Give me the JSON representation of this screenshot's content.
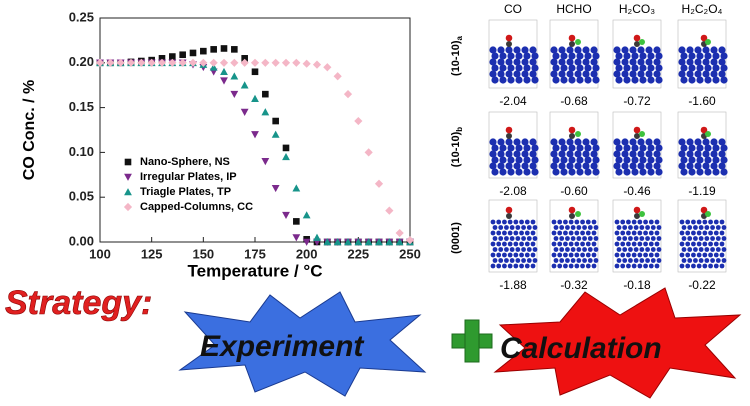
{
  "chart_data": {
    "type": "scatter",
    "xlabel": "Temperature / °C",
    "ylabel": "CO Conc. / %",
    "xlim": [
      100,
      250
    ],
    "xticks": [
      100,
      125,
      150,
      175,
      200,
      225,
      250
    ],
    "ylim": [
      0,
      0.25
    ],
    "yticks": [
      {
        "value": 0,
        "label": "0.00"
      },
      {
        "value": 0.05,
        "label": "0.05"
      },
      {
        "value": 0.1,
        "label": "0.10"
      },
      {
        "value": 0.15,
        "label": "0.15"
      },
      {
        "value": 0.2,
        "label": "0.20"
      },
      {
        "value": 0.25,
        "label": "0.25"
      }
    ],
    "legend": "lower left",
    "series": [
      {
        "name": "Nano-Sphere, NS",
        "color": "#111111",
        "marker": "square",
        "x": [
          100,
          105,
          110,
          115,
          120,
          125,
          130,
          135,
          140,
          145,
          150,
          155,
          160,
          165,
          170,
          175,
          180,
          185,
          190,
          195,
          200,
          205,
          210,
          215,
          220,
          225,
          230,
          235,
          240,
          245,
          250
        ],
        "values": [
          0.2,
          0.2,
          0.2,
          0.201,
          0.202,
          0.203,
          0.205,
          0.207,
          0.209,
          0.211,
          0.213,
          0.215,
          0.216,
          0.215,
          0.205,
          0.19,
          0.165,
          0.135,
          0.105,
          0.023,
          0.003,
          0,
          0,
          0,
          0,
          0,
          0,
          0,
          0,
          0,
          0
        ]
      },
      {
        "name": "Irregular Plates, IP",
        "color": "#7b2a8c",
        "marker": "triangle-down",
        "x": [
          100,
          105,
          110,
          115,
          120,
          125,
          130,
          135,
          140,
          145,
          150,
          155,
          160,
          165,
          170,
          175,
          180,
          185,
          190,
          195,
          200,
          205,
          210,
          215,
          220,
          225,
          230,
          235,
          240,
          245,
          250
        ],
        "values": [
          0.2,
          0.2,
          0.2,
          0.2,
          0.2,
          0.2,
          0.2,
          0.2,
          0.2,
          0.198,
          0.195,
          0.19,
          0.18,
          0.165,
          0.145,
          0.12,
          0.09,
          0.06,
          0.03,
          0.005,
          0,
          0,
          0,
          0,
          0,
          0,
          0,
          0,
          0,
          0,
          0
        ]
      },
      {
        "name": "Triagle Plates, TP",
        "color": "#17948a",
        "marker": "triangle-up",
        "x": [
          100,
          105,
          110,
          115,
          120,
          125,
          130,
          135,
          140,
          145,
          150,
          155,
          160,
          165,
          170,
          175,
          180,
          185,
          190,
          195,
          200,
          205,
          210,
          215,
          220,
          225,
          230,
          235,
          240,
          245,
          250
        ],
        "values": [
          0.2,
          0.2,
          0.2,
          0.2,
          0.2,
          0.2,
          0.2,
          0.2,
          0.2,
          0.2,
          0.198,
          0.195,
          0.19,
          0.185,
          0.175,
          0.16,
          0.145,
          0.12,
          0.095,
          0.06,
          0.03,
          0.005,
          0,
          0,
          0,
          0,
          0,
          0,
          0,
          0,
          0
        ]
      },
      {
        "name": "Capped-Columns, CC",
        "color": "#f4b6c6",
        "marker": "diamond",
        "x": [
          100,
          105,
          110,
          115,
          120,
          125,
          130,
          135,
          140,
          145,
          150,
          155,
          160,
          165,
          170,
          175,
          180,
          185,
          190,
          195,
          200,
          205,
          210,
          215,
          220,
          225,
          230,
          235,
          240,
          245,
          250
        ],
        "values": [
          0.2,
          0.2,
          0.2,
          0.2,
          0.2,
          0.2,
          0.2,
          0.2,
          0.2,
          0.2,
          0.2,
          0.2,
          0.2,
          0.2,
          0.2,
          0.2,
          0.2,
          0.2,
          0.2,
          0.2,
          0.199,
          0.198,
          0.195,
          0.185,
          0.165,
          0.135,
          0.1,
          0.065,
          0.035,
          0.01,
          0.002
        ]
      }
    ]
  },
  "grid": {
    "columns": [
      "CO",
      "HCHO",
      "H₂CO₃",
      "H₂C₂O₄"
    ],
    "rows": [
      {
        "label": "(10-10)",
        "sub": "a",
        "energies": [
          "-2.04",
          "-0.68",
          "-0.72",
          "-1.60"
        ]
      },
      {
        "label": "(10-10)",
        "sub": "b",
        "energies": [
          "-2.08",
          "-0.60",
          "-0.46",
          "-1.19"
        ]
      },
      {
        "label": "(0001)",
        "energies": [
          "-1.88",
          "-0.32",
          "-0.18",
          "-0.22"
        ]
      }
    ]
  },
  "strategy": {
    "title": "Strategy:",
    "left": "Experiment",
    "right": "Calculation"
  }
}
